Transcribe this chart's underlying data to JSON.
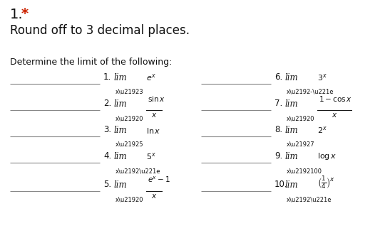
{
  "title_number": "1.",
  "title_star": " *",
  "subtitle": "Round off to 3 decimal places.",
  "section_header": "Determine the limit of the following:",
  "bg_color": "#ffffff",
  "title_color": "#000000",
  "star_color": "#cc2200",
  "figsize": [
    5.47,
    3.35
  ],
  "dpi": 100,
  "items_left": [
    {
      "number": "1.",
      "lim_sub": "x\\u21923",
      "expr": "$e^x$",
      "has_fraction": false
    },
    {
      "number": "2.",
      "lim_sub": "x\\u21920",
      "numer": "$\\sin x$",
      "denom": "$x$",
      "has_fraction": true
    },
    {
      "number": "3.",
      "lim_sub": "x\\u21925",
      "expr": "$\\ln x$",
      "has_fraction": false
    },
    {
      "number": "4.",
      "lim_sub": "x\\u2192\\u221e",
      "expr": "$5^x$",
      "has_fraction": false
    },
    {
      "number": "5.",
      "lim_sub": "x\\u21920",
      "numer": "$e^x - 1$",
      "denom": "$x$",
      "has_fraction": true
    }
  ],
  "items_right": [
    {
      "number": "6.",
      "lim_sub": "x\\u2192-\\u221e",
      "expr": "$3^x$",
      "has_fraction": false
    },
    {
      "number": "7.",
      "lim_sub": "x\\u21920",
      "numer": "$1 - \\cos x$",
      "denom": "$x$",
      "has_fraction": true
    },
    {
      "number": "8.",
      "lim_sub": "x\\u21927",
      "expr": "$2^x$",
      "has_fraction": false
    },
    {
      "number": "9.",
      "lim_sub": "x\\u2192100",
      "expr": "$\\log x$",
      "has_fraction": false
    },
    {
      "number": "10.",
      "lim_sub": "x\\u2192\\u221e",
      "expr": "$\\left(\\\\frac{1}{4}\\\\right)^x$",
      "has_fraction": false
    }
  ],
  "line_color": "#888888",
  "text_color": "#111111"
}
